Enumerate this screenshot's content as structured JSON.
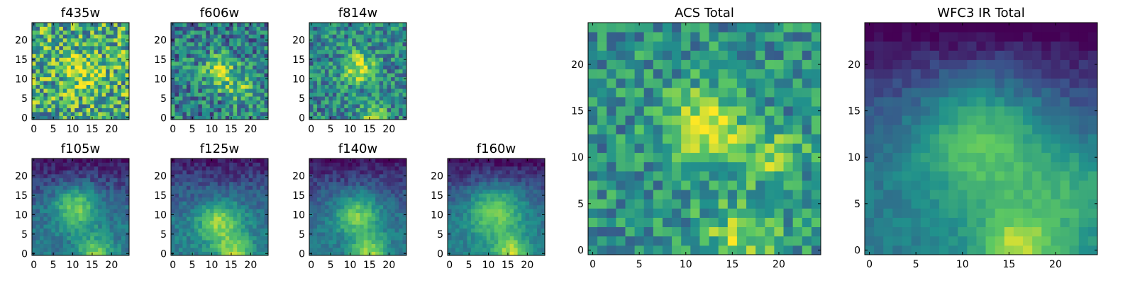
{
  "chart_data": [
    {
      "type": "heatmap",
      "title": "f435w",
      "grid_size": 25,
      "colormap": "viridis",
      "xticks": [
        0,
        5,
        10,
        15,
        20
      ],
      "yticks": [
        0,
        5,
        10,
        15,
        20
      ],
      "xlim": [
        0,
        24
      ],
      "ylim": [
        0,
        24
      ],
      "pattern": {
        "base": 0.62,
        "noise": 0.35,
        "blobs": [
          {
            "x": 12,
            "y": 12,
            "s": 3,
            "a": 0.3
          }
        ]
      }
    },
    {
      "type": "heatmap",
      "title": "f606w",
      "grid_size": 25,
      "colormap": "viridis",
      "xticks": [
        0,
        5,
        10,
        15,
        20
      ],
      "yticks": [
        0,
        5,
        10,
        15,
        20
      ],
      "xlim": [
        0,
        24
      ],
      "ylim": [
        0,
        24
      ],
      "pattern": {
        "base": 0.42,
        "noise": 0.28,
        "blobs": [
          {
            "x": 12,
            "y": 12,
            "s": 3,
            "a": 0.45
          },
          {
            "x": 18,
            "y": 7,
            "s": 3,
            "a": 0.3
          }
        ]
      }
    },
    {
      "type": "heatmap",
      "title": "f814w",
      "grid_size": 25,
      "colormap": "viridis",
      "xticks": [
        0,
        5,
        10,
        15,
        20
      ],
      "yticks": [
        0,
        5,
        10,
        15,
        20
      ],
      "xlim": [
        0,
        24
      ],
      "ylim": [
        0,
        24
      ],
      "pattern": {
        "base": 0.45,
        "noise": 0.25,
        "blobs": [
          {
            "x": 12,
            "y": 13,
            "s": 3,
            "a": 0.45
          },
          {
            "x": 16,
            "y": 1,
            "s": 2,
            "a": 0.4
          }
        ]
      }
    },
    {
      "type": "heatmap",
      "title": "f105w",
      "grid_size": 25,
      "colormap": "viridis",
      "xticks": [
        0,
        5,
        10,
        15,
        20
      ],
      "yticks": [
        0,
        5,
        10,
        15,
        20
      ],
      "xlim": [
        0,
        24
      ],
      "ylim": [
        0,
        24
      ],
      "pattern": {
        "base": 0.4,
        "noise": 0.1,
        "topfade": 0.35,
        "blobs": [
          {
            "x": 11,
            "y": 12,
            "s": 4,
            "a": 0.45
          },
          {
            "x": 16,
            "y": 0,
            "s": 3,
            "a": 0.4
          }
        ]
      }
    },
    {
      "type": "heatmap",
      "title": "f125w",
      "grid_size": 25,
      "colormap": "viridis",
      "xticks": [
        0,
        5,
        10,
        15,
        20
      ],
      "yticks": [
        0,
        5,
        10,
        15,
        20
      ],
      "xlim": [
        0,
        24
      ],
      "ylim": [
        0,
        24
      ],
      "pattern": {
        "base": 0.42,
        "noise": 0.1,
        "topfade": 0.35,
        "blobs": [
          {
            "x": 12,
            "y": 8,
            "s": 4,
            "a": 0.45
          },
          {
            "x": 16,
            "y": 0,
            "s": 3,
            "a": 0.4
          }
        ]
      }
    },
    {
      "type": "heatmap",
      "title": "f140w",
      "grid_size": 25,
      "colormap": "viridis",
      "xticks": [
        0,
        5,
        10,
        15,
        20
      ],
      "yticks": [
        0,
        5,
        10,
        15,
        20
      ],
      "xlim": [
        0,
        24
      ],
      "ylim": [
        0,
        24
      ],
      "pattern": {
        "base": 0.4,
        "noise": 0.09,
        "topfade": 0.35,
        "blobs": [
          {
            "x": 12,
            "y": 10,
            "s": 4,
            "a": 0.42
          },
          {
            "x": 15,
            "y": 0,
            "s": 3,
            "a": 0.45
          }
        ]
      }
    },
    {
      "type": "heatmap",
      "title": "f160w",
      "grid_size": 25,
      "colormap": "viridis",
      "xticks": [
        0,
        5,
        10,
        15,
        20
      ],
      "yticks": [
        0,
        5,
        10,
        15,
        20
      ],
      "xlim": [
        0,
        24
      ],
      "ylim": [
        0,
        24
      ],
      "pattern": {
        "base": 0.42,
        "noise": 0.08,
        "topfade": 0.4,
        "blobs": [
          {
            "x": 12,
            "y": 11,
            "s": 5,
            "a": 0.42
          },
          {
            "x": 16,
            "y": 0,
            "s": 3,
            "a": 0.45
          }
        ]
      }
    },
    {
      "type": "heatmap",
      "title": "ACS Total",
      "grid_size": 25,
      "colormap": "viridis",
      "xticks": [
        0,
        5,
        10,
        15,
        20
      ],
      "yticks": [
        0,
        5,
        10,
        15,
        20
      ],
      "xlim": [
        0,
        24
      ],
      "ylim": [
        0,
        24
      ],
      "pattern": {
        "base": 0.5,
        "noise": 0.22,
        "blobs": [
          {
            "x": 12,
            "y": 13,
            "s": 3,
            "a": 0.45
          },
          {
            "x": 20,
            "y": 10,
            "s": 2,
            "a": 0.35
          },
          {
            "x": 16,
            "y": 1,
            "s": 3,
            "a": 0.35
          }
        ]
      }
    },
    {
      "type": "heatmap",
      "title": "WFC3 IR Total",
      "grid_size": 25,
      "colormap": "viridis",
      "xticks": [
        0,
        5,
        10,
        15,
        20
      ],
      "yticks": [
        0,
        5,
        10,
        15,
        20
      ],
      "xlim": [
        0,
        24
      ],
      "ylim": [
        0,
        24
      ],
      "pattern": {
        "base": 0.42,
        "noise": 0.06,
        "topfade": 0.45,
        "blobs": [
          {
            "x": 12,
            "y": 12,
            "s": 5,
            "a": 0.4
          },
          {
            "x": 16,
            "y": 0,
            "s": 3,
            "a": 0.45
          },
          {
            "x": 22,
            "y": 6,
            "s": 4,
            "a": 0.2
          }
        ]
      }
    }
  ]
}
